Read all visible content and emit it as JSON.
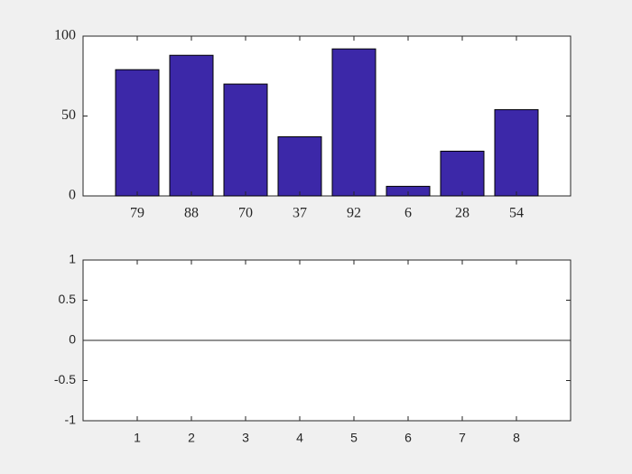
{
  "chart_data": [
    {
      "type": "bar",
      "categories": [
        "79",
        "88",
        "70",
        "37",
        "92",
        "6",
        "28",
        "54"
      ],
      "values": [
        79,
        88,
        70,
        37,
        92,
        6,
        28,
        54
      ],
      "color": "#3c28a8",
      "xlim": [
        0,
        9
      ],
      "ylim": [
        0,
        100
      ],
      "yticks": [
        0,
        50,
        100
      ]
    },
    {
      "type": "bar",
      "values": [
        0,
        0,
        0,
        0,
        0,
        0,
        0,
        0
      ],
      "color": "#3c28a8",
      "xlim": [
        0,
        9
      ],
      "xticks": [
        1,
        2,
        3,
        4,
        5,
        6,
        7,
        8
      ],
      "ylim": [
        -1,
        1
      ],
      "yticks": [
        -1,
        -0.5,
        0,
        0.5,
        1
      ]
    }
  ]
}
